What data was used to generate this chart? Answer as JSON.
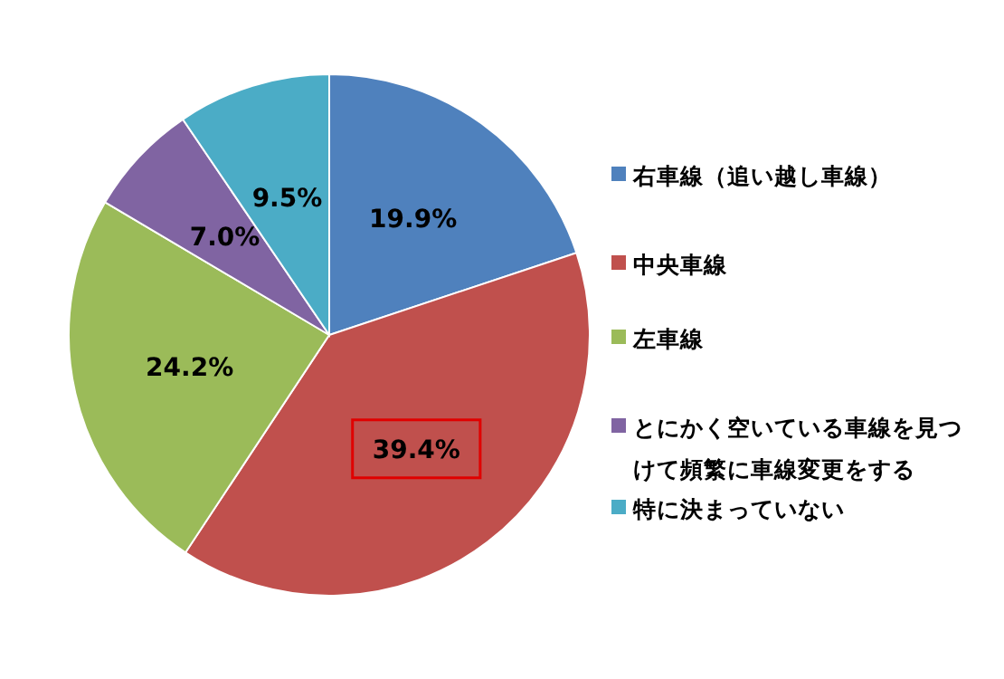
{
  "chart_data": {
    "type": "pie",
    "categories": [
      "右車線（追い越し車線）",
      "中央車線",
      "左車線",
      "とにかく空いている車線を見つけて頻繁に車線変更をする",
      "特に決まっていない"
    ],
    "values": [
      19.9,
      39.4,
      24.2,
      7.0,
      9.5
    ],
    "value_labels": [
      "19.9%",
      "39.4%",
      "24.2%",
      "7.0%",
      "9.5%"
    ],
    "colors": [
      "#4f81bd",
      "#c0504d",
      "#9bbb59",
      "#8064a2",
      "#4bacc6"
    ],
    "legend": "right"
  }
}
